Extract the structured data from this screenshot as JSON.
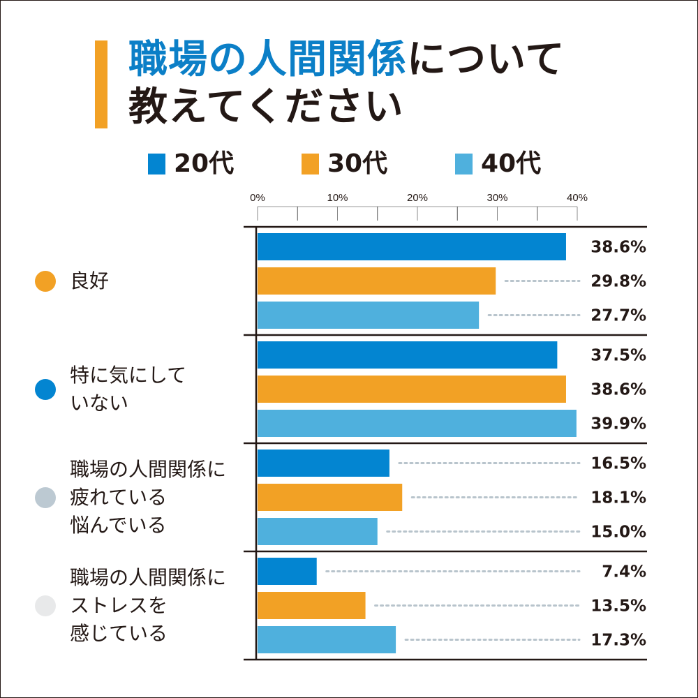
{
  "title": {
    "accent_text": "職場の人間関係",
    "line1_rest": "について",
    "line2": "教えてください"
  },
  "colors": {
    "series_20s": "#0385d1",
    "series_30s": "#f2a125",
    "series_40s": "#4fb0dd",
    "title_accent": "#0b7fc7",
    "title_bar": "#f2a125",
    "dotted_leader": "#b8c4cc",
    "text": "#231815"
  },
  "legend": [
    {
      "label": "20代",
      "color": "#0385d1"
    },
    {
      "label": "30代",
      "color": "#f2a125"
    },
    {
      "label": "40代",
      "color": "#4fb0dd"
    }
  ],
  "chart_data": {
    "type": "bar",
    "orientation": "horizontal",
    "title": "職場の人間関係について教えてください",
    "xlabel": "",
    "ylabel": "",
    "xlim": [
      0,
      40
    ],
    "x_ticks": [
      "0%",
      "10%",
      "20%",
      "30%",
      "40%"
    ],
    "legend_position": "top",
    "categories": [
      {
        "label": "良好",
        "dot_color": "#f2a125"
      },
      {
        "label": "特に気にして\nいない",
        "dot_color": "#0385d1"
      },
      {
        "label": "職場の人間関係に\n疲れている\n悩んでいる",
        "dot_color": "#bcc9d2"
      },
      {
        "label": "職場の人間関係に\nストレスを\n感じている",
        "dot_color": "#e8e9ea"
      }
    ],
    "series": [
      {
        "name": "20代",
        "color": "#0385d1",
        "values": [
          38.6,
          37.5,
          16.5,
          7.4
        ],
        "labels": [
          "38.6%",
          "37.5%",
          "16.5%",
          "7.4%"
        ]
      },
      {
        "name": "30代",
        "color": "#f2a125",
        "values": [
          29.8,
          38.6,
          18.1,
          13.5
        ],
        "labels": [
          "29.8%",
          "38.6%",
          "18.1%",
          "13.5%"
        ]
      },
      {
        "name": "40代",
        "color": "#4fb0dd",
        "values": [
          27.7,
          39.9,
          15.0,
          17.3
        ],
        "labels": [
          "27.7%",
          "39.9%",
          "15.0%",
          "17.3%"
        ]
      }
    ]
  }
}
